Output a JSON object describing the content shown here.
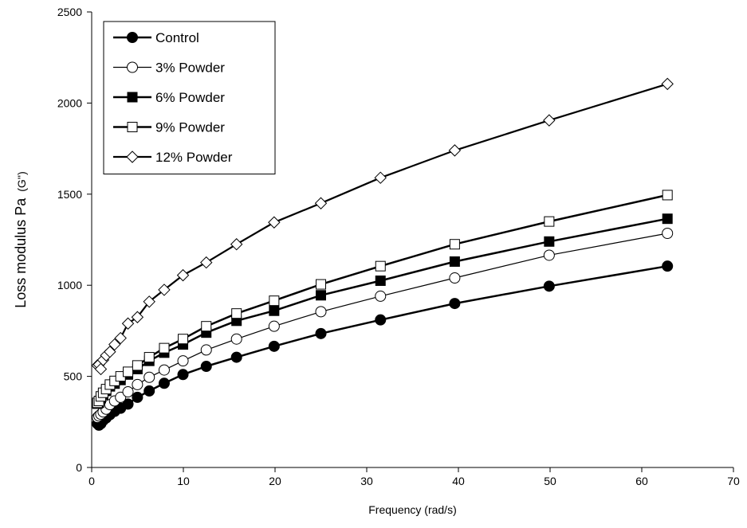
{
  "chart_data": {
    "type": "line",
    "title": "",
    "xlabel": "Frequency (rad/s)",
    "ylabel": "Loss modulus Pa",
    "ylabel_suffix": "(G'')",
    "xlim": [
      0,
      70
    ],
    "ylim": [
      0,
      2500
    ],
    "xticks": [
      0,
      10,
      20,
      30,
      40,
      50,
      60,
      70
    ],
    "yticks": [
      0,
      500,
      1000,
      1500,
      2000,
      2500
    ],
    "grid": false,
    "legend_position": "top-left",
    "x": [
      0.628,
      0.791,
      0.996,
      1.25,
      1.58,
      1.99,
      2.5,
      3.15,
      3.96,
      4.99,
      6.28,
      7.91,
      9.96,
      12.5,
      15.8,
      19.9,
      25.0,
      31.5,
      39.6,
      49.9,
      62.8
    ],
    "series": [
      {
        "name": "Control",
        "marker": "filled-circle",
        "values": [
          240,
          232,
          240,
          258,
          272,
          290,
          308,
          325,
          348,
          385,
          420,
          462,
          510,
          555,
          605,
          665,
          735,
          810,
          900,
          995,
          1105
        ]
      },
      {
        "name": "3% Powder",
        "marker": "open-circle",
        "values": [
          275,
          283,
          292,
          305,
          320,
          345,
          365,
          385,
          415,
          455,
          495,
          535,
          585,
          645,
          705,
          775,
          855,
          940,
          1040,
          1165,
          1285
        ]
      },
      {
        "name": "6% Powder",
        "marker": "filled-square",
        "values": [
          350,
          355,
          380,
          400,
          420,
          445,
          460,
          480,
          510,
          540,
          585,
          630,
          675,
          740,
          805,
          860,
          945,
          1025,
          1130,
          1240,
          1365
        ]
      },
      {
        "name": "9% Powder",
        "marker": "open-square",
        "values": [
          355,
          365,
          390,
          410,
          430,
          455,
          475,
          500,
          525,
          560,
          605,
          655,
          705,
          775,
          845,
          915,
          1005,
          1105,
          1225,
          1350,
          1495
        ]
      },
      {
        "name": "12% Powder",
        "marker": "open-diamond",
        "values": [
          560,
          565,
          540,
          590,
          615,
          635,
          675,
          710,
          790,
          825,
          910,
          975,
          1055,
          1125,
          1225,
          1345,
          1450,
          1590,
          1740,
          1905,
          2105
        ]
      }
    ]
  }
}
